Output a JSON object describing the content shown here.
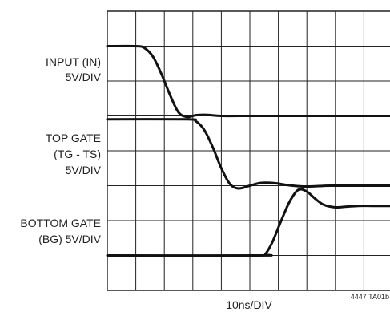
{
  "chart_data": {
    "type": "line",
    "title": "",
    "xlabel": "10ns/DIV",
    "ylabel": "",
    "note": "4447 TA01b",
    "divisions": {
      "x": 10,
      "y": 8
    },
    "channel_labels": [
      {
        "lines": [
          "INPUT (IN)",
          "5V/DIV"
        ]
      },
      {
        "lines": [
          "TOP GATE",
          "(TG - TS)",
          "5V/DIV"
        ]
      },
      {
        "lines": [
          "BOTTOM GATE",
          "(BG) 5V/DIV"
        ]
      }
    ],
    "series": [
      {
        "name": "INPUT (IN)",
        "x": [
          0,
          1.0,
          1.3,
          1.6,
          1.9,
          2.2,
          2.5,
          2.8,
          3.1,
          3.5,
          4.0,
          5.0,
          6.0,
          7.0,
          8.0,
          9.0,
          10.0
        ],
        "y": [
          7.0,
          7.0,
          6.95,
          6.7,
          6.2,
          5.6,
          5.1,
          4.97,
          5.02,
          5.03,
          5.0,
          5.0,
          5.0,
          5.0,
          5.0,
          5.0,
          5.0
        ]
      },
      {
        "name": "TOP GATE (TG - TS)",
        "x": [
          0,
          2.8,
          3.1,
          3.4,
          3.7,
          4.0,
          4.3,
          4.6,
          5.0,
          5.4,
          5.9,
          6.3,
          6.8,
          7.2,
          7.8,
          8.5,
          9.0,
          10.0
        ],
        "y": [
          4.9,
          4.9,
          4.85,
          4.6,
          4.1,
          3.5,
          3.05,
          2.92,
          3.0,
          3.08,
          3.07,
          3.02,
          2.98,
          2.98,
          3.0,
          3.0,
          3.0,
          3.0
        ]
      },
      {
        "name": "BOTTOM GATE (BG)",
        "x": [
          0,
          5.3,
          5.55,
          5.8,
          6.1,
          6.4,
          6.7,
          7.0,
          7.3,
          7.6,
          8.0,
          8.4,
          8.8,
          9.3,
          10.0
        ],
        "y": [
          1.0,
          1.0,
          1.05,
          1.4,
          2.0,
          2.55,
          2.88,
          2.83,
          2.62,
          2.45,
          2.38,
          2.4,
          2.42,
          2.42,
          2.42
        ]
      }
    ]
  }
}
